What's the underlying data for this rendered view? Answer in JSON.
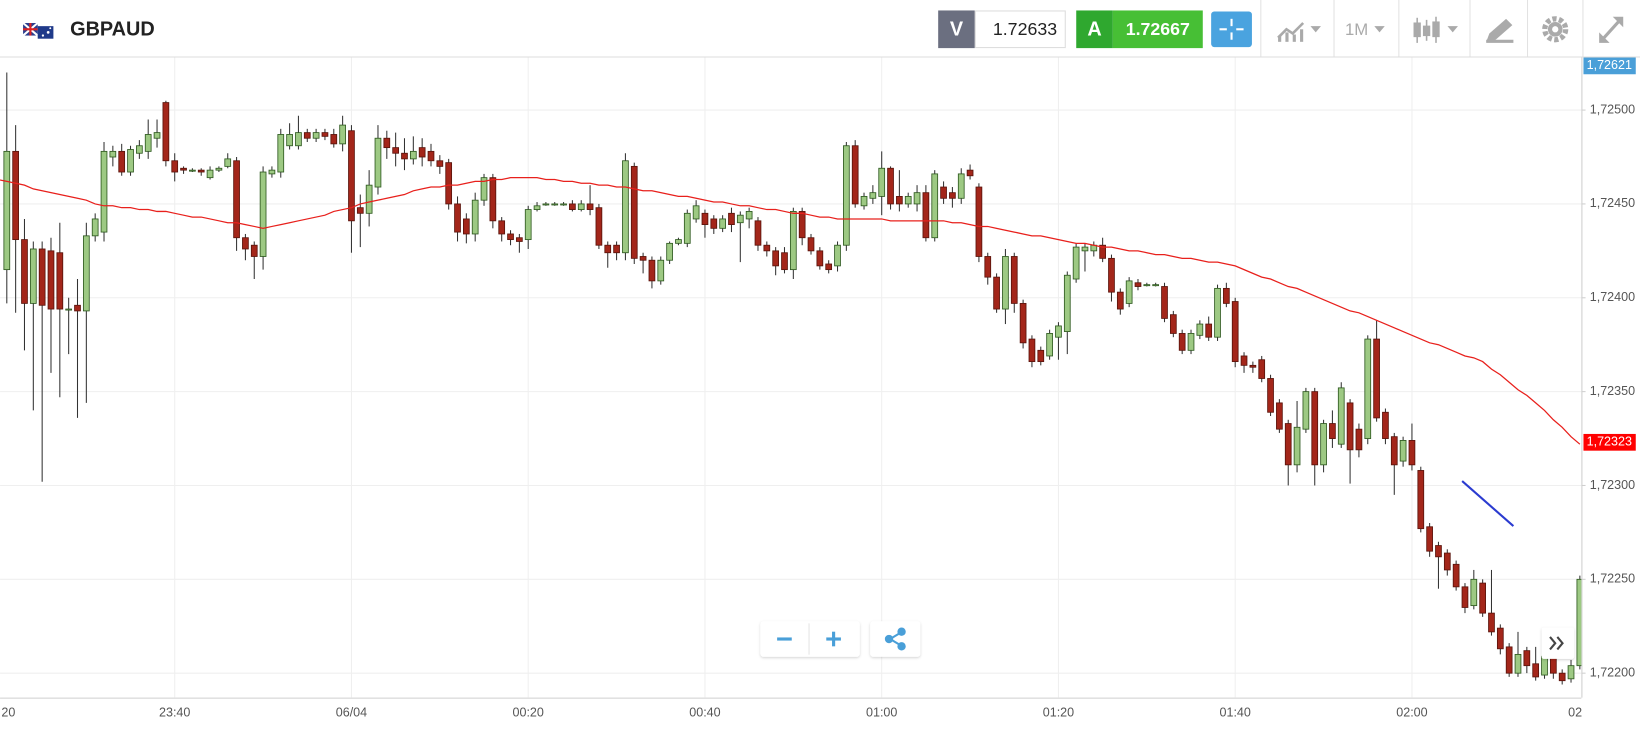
{
  "toolbar": {
    "symbol": "GBPAUD",
    "sell_label": "V",
    "sell_price": "1.72633",
    "buy_label": "A",
    "buy_price": "1.72667",
    "timeframe": "1M"
  },
  "chart_data": {
    "type": "candlestick",
    "categories": [
      "20",
      null,
      null,
      null,
      null,
      null,
      null,
      null,
      null,
      null,
      null,
      null,
      null,
      null,
      null,
      null,
      null,
      null,
      null,
      null,
      "23:40",
      null,
      null,
      null,
      null,
      null,
      null,
      null,
      null,
      null,
      null,
      null,
      null,
      null,
      null,
      null,
      null,
      null,
      null,
      null,
      "06/04",
      null,
      null,
      null,
      null,
      null,
      null,
      null,
      null,
      null,
      null,
      null,
      null,
      null,
      null,
      null,
      null,
      null,
      null,
      null,
      "00:20",
      null,
      null,
      null,
      null,
      null,
      null,
      null,
      null,
      null,
      null,
      null,
      null,
      null,
      null,
      null,
      null,
      null,
      null,
      null,
      "00:40",
      null,
      null,
      null,
      null,
      null,
      null,
      null,
      null,
      null,
      null,
      null,
      null,
      null,
      null,
      null,
      null,
      null,
      null,
      null,
      "01:00",
      null,
      null,
      null,
      null,
      null,
      null,
      null,
      null,
      null,
      null,
      null,
      null,
      null,
      null,
      null,
      null,
      null,
      null,
      null,
      "01:20",
      null,
      null,
      null,
      null,
      null,
      null,
      null,
      null,
      null,
      null,
      null,
      null,
      null,
      null,
      null,
      null,
      null,
      null,
      null,
      "01:40",
      null,
      null,
      null,
      null,
      null,
      null,
      null,
      null,
      null,
      null,
      null,
      null,
      null,
      null,
      null,
      null,
      null,
      null,
      null,
      "02:00",
      null,
      null,
      null,
      null,
      null,
      null,
      null,
      null,
      null,
      null,
      null,
      null,
      null,
      null,
      null,
      null,
      null,
      null,
      null,
      "02"
    ],
    "open": [
      null,
      1.72415,
      1.72478,
      1.72431,
      1.72397,
      1.72426,
      1.72425,
      1.72424,
      1.72394,
      1.72396,
      1.72393,
      1.72433,
      1.72435,
      1.72475,
      1.72478,
      1.72467,
      1.72477,
      1.72478,
      1.72485,
      1.72504,
      1.72473,
      1.72469,
      1.72468,
      1.72468,
      1.72464,
      1.72468,
      1.7247,
      1.72473,
      1.72432,
      1.72428,
      1.72422,
      1.72466,
      1.72467,
      1.72481,
      1.72481,
      1.72488,
      1.72485,
      1.72488,
      1.72487,
      1.72482,
      1.72489,
      1.72448,
      1.72445,
      1.72459,
      1.72485,
      1.7248,
      1.72477,
      1.72474,
      1.7248,
      1.72478,
      1.72473,
      1.72472,
      1.7245,
      1.72442,
      1.72434,
      1.72452,
      1.72464,
      1.72441,
      1.72434,
      1.72432,
      1.72431,
      1.72447,
      1.7245,
      1.7245,
      1.7245,
      1.7245,
      1.72447,
      1.7245,
      1.72448,
      1.72428,
      1.72428,
      1.72424,
      1.7247,
      1.72422,
      1.7242,
      1.72409,
      1.7242,
      1.72429,
      1.72429,
      1.72442,
      1.72445,
      1.72442,
      1.72437,
      1.72445,
      1.7244,
      1.72442,
      1.72441,
      1.72428,
      1.72425,
      1.72424,
      1.72415,
      1.72446,
      1.72432,
      1.72425,
      1.72418,
      1.72417,
      1.72428,
      1.72481,
      1.72449,
      1.72453,
      1.72454,
      1.72469,
      1.72454,
      1.7245,
      1.7245,
      1.72456,
      1.72432,
      1.72459,
      1.72456,
      1.72453,
      1.72468,
      1.72459,
      1.72422,
      1.72411,
      1.72394,
      1.72422,
      1.72397,
      1.72378,
      1.72372,
      1.72369,
      1.72379,
      1.72382,
      1.7241,
      1.72425,
      1.72425,
      1.72428,
      1.72421,
      1.72403,
      1.72397,
      1.72408,
      1.72407,
      1.72407,
      1.72406,
      1.72391,
      1.72381,
      1.72372,
      1.7238,
      1.72386,
      1.72379,
      1.72405,
      1.72398,
      1.72369,
      1.72364,
      1.72367,
      1.72357,
      1.72344,
      1.72333,
      1.72311,
      1.7233,
      1.7235,
      1.72311,
      1.72333,
      1.72322,
      1.72344,
      1.7233,
      1.72325,
      1.72378,
      1.72339,
      1.72326,
      1.72313,
      1.72324,
      1.72308,
      1.72278,
      1.72268,
      1.72264,
      1.72258,
      1.72246,
      1.72236,
      1.72248,
      1.72232,
      1.72224,
      1.72214,
      1.722,
      1.72212,
      1.72205,
      1.72199,
      1.72208,
      1.722,
      1.72197,
      1.72204,
      null
    ],
    "close": [
      null,
      1.72478,
      1.72431,
      1.72397,
      1.72426,
      1.72396,
      1.72394,
      1.72394,
      1.72394,
      1.72393,
      1.72433,
      1.72442,
      1.72478,
      1.72478,
      1.72467,
      1.72479,
      1.72481,
      1.72487,
      1.72488,
      1.72473,
      1.72467,
      1.72468,
      1.72468,
      1.72467,
      1.72468,
      1.72469,
      1.72474,
      1.72432,
      1.72426,
      1.72422,
      1.72467,
      1.72468,
      1.72487,
      1.72487,
      1.72488,
      1.72485,
      1.72488,
      1.72486,
      1.72482,
      1.72492,
      1.72441,
      1.72445,
      1.7246,
      1.72485,
      1.7248,
      1.72477,
      1.72474,
      1.72478,
      1.72475,
      1.72473,
      1.7247,
      1.7245,
      1.72435,
      1.72434,
      1.72452,
      1.72464,
      1.72441,
      1.72434,
      1.72431,
      1.7243,
      1.72447,
      1.72449,
      1.7245,
      1.7245,
      1.7245,
      1.72447,
      1.7245,
      1.72447,
      1.72428,
      1.72424,
      1.72424,
      1.72473,
      1.72421,
      1.7242,
      1.72409,
      1.7242,
      1.72429,
      1.72431,
      1.72445,
      1.72449,
      1.72439,
      1.72437,
      1.72442,
      1.72439,
      1.72444,
      1.72446,
      1.72428,
      1.72425,
      1.72417,
      1.72415,
      1.72446,
      1.72432,
      1.72425,
      1.72417,
      1.72415,
      1.72428,
      1.72481,
      1.7245,
      1.72454,
      1.72456,
      1.72469,
      1.7245,
      1.7245,
      1.72454,
      1.72456,
      1.72432,
      1.72466,
      1.72453,
      1.72453,
      1.72466,
      1.72465,
      1.72422,
      1.72411,
      1.72394,
      1.72422,
      1.72397,
      1.72376,
      1.72366,
      1.72366,
      1.72381,
      1.72385,
      1.72412,
      1.72427,
      1.72427,
      1.72428,
      1.72421,
      1.72403,
      1.72394,
      1.72409,
      1.72406,
      1.72407,
      1.72407,
      1.72389,
      1.72381,
      1.72372,
      1.72381,
      1.72386,
      1.72379,
      1.72405,
      1.72397,
      1.72366,
      1.72364,
      1.72363,
      1.72357,
      1.72339,
      1.7233,
      1.72311,
      1.72331,
      1.7235,
      1.72311,
      1.72333,
      1.72325,
      1.72352,
      1.72319,
      1.72319,
      1.72378,
      1.72336,
      1.72325,
      1.72311,
      1.72324,
      1.72311,
      1.72277,
      1.72265,
      1.72262,
      1.72255,
      1.72246,
      1.72235,
      1.7225,
      1.72232,
      1.72222,
      1.72213,
      1.722,
      1.7221,
      1.72204,
      1.72198,
      1.72209,
      1.722,
      1.72196,
      1.72204,
      1.7225,
      null
    ],
    "high": [
      null,
      1.7252,
      1.72492,
      1.72442,
      1.7243,
      1.7243,
      1.72432,
      1.7244,
      1.724,
      1.7241,
      1.7244,
      1.72445,
      1.72483,
      1.72481,
      1.72482,
      1.72481,
      1.72484,
      1.72495,
      1.72495,
      1.72505,
      1.72477,
      1.7247,
      1.72469,
      1.72469,
      1.7247,
      1.7247,
      1.72477,
      1.72475,
      1.72434,
      1.7243,
      1.7247,
      1.7247,
      1.7249,
      1.72493,
      1.72497,
      1.7249,
      1.7249,
      1.7249,
      1.7249,
      1.72497,
      1.72492,
      1.72455,
      1.72468,
      1.72492,
      1.72489,
      1.72488,
      1.72485,
      1.72486,
      1.72485,
      1.72482,
      1.72476,
      1.72474,
      1.72454,
      1.72445,
      1.72456,
      1.72466,
      1.72466,
      1.72443,
      1.72436,
      1.72434,
      1.72449,
      1.72451,
      1.72451,
      1.72451,
      1.72451,
      1.72452,
      1.72452,
      1.7246,
      1.7245,
      1.7243,
      1.7243,
      1.72477,
      1.72472,
      1.72424,
      1.72422,
      1.72422,
      1.7243,
      1.72432,
      1.72447,
      1.72452,
      1.72447,
      1.72444,
      1.72444,
      1.72448,
      1.72446,
      1.72448,
      1.72443,
      1.7243,
      1.72427,
      1.72427,
      1.72448,
      1.72448,
      1.72434,
      1.72427,
      1.7242,
      1.7243,
      1.72483,
      1.72484,
      1.72456,
      1.7246,
      1.72478,
      1.7247,
      1.72468,
      1.72456,
      1.7246,
      1.7246,
      1.72468,
      1.72462,
      1.72459,
      1.72469,
      1.72471,
      1.72461,
      1.72424,
      1.72413,
      1.72426,
      1.72424,
      1.72399,
      1.7238,
      1.72374,
      1.72383,
      1.72387,
      1.72414,
      1.72429,
      1.72429,
      1.7243,
      1.72432,
      1.72423,
      1.72405,
      1.72411,
      1.7241,
      1.72408,
      1.72408,
      1.72408,
      1.72393,
      1.72383,
      1.72383,
      1.72388,
      1.7239,
      1.72407,
      1.72408,
      1.724,
      1.72371,
      1.72366,
      1.72369,
      1.72359,
      1.72346,
      1.72335,
      1.72345,
      1.72352,
      1.72352,
      1.72335,
      1.7234,
      1.72355,
      1.72346,
      1.72333,
      1.7238,
      1.72388,
      1.72341,
      1.72328,
      1.72326,
      1.72333,
      1.7231,
      1.7228,
      1.7227,
      1.72266,
      1.7226,
      1.72248,
      1.72255,
      1.7225,
      1.72255,
      1.72226,
      1.72216,
      1.72222,
      1.72214,
      1.72214,
      1.72211,
      1.7221,
      1.72202,
      1.72207,
      1.72252,
      null
    ],
    "low": [
      null,
      1.72397,
      1.72392,
      1.72372,
      1.7234,
      1.72302,
      1.7236,
      1.72347,
      1.7237,
      1.72336,
      1.72344,
      1.7243,
      1.7243,
      1.7247,
      1.72465,
      1.72465,
      1.72474,
      1.72474,
      1.7248,
      1.7247,
      1.72462,
      1.72466,
      1.72467,
      1.72465,
      1.72463,
      1.72467,
      1.72469,
      1.72425,
      1.7242,
      1.7241,
      1.72415,
      1.72464,
      1.72464,
      1.72479,
      1.72479,
      1.72483,
      1.72483,
      1.72484,
      1.7248,
      1.72478,
      1.72424,
      1.72427,
      1.72438,
      1.72455,
      1.72474,
      1.7247,
      1.72468,
      1.72471,
      1.7247,
      1.7247,
      1.72466,
      1.72447,
      1.7243,
      1.72429,
      1.7243,
      1.72449,
      1.72437,
      1.7243,
      1.72428,
      1.72424,
      1.72426,
      1.72446,
      1.72449,
      1.72449,
      1.72449,
      1.72446,
      1.72446,
      1.72444,
      1.72426,
      1.72416,
      1.7242,
      1.7242,
      1.72418,
      1.72413,
      1.72405,
      1.72407,
      1.72418,
      1.72428,
      1.72427,
      1.7244,
      1.72432,
      1.72434,
      1.72435,
      1.72435,
      1.72419,
      1.72437,
      1.72425,
      1.72422,
      1.72412,
      1.72413,
      1.7241,
      1.72428,
      1.72423,
      1.72415,
      1.72413,
      1.72414,
      1.72425,
      1.72448,
      1.72447,
      1.7245,
      1.72444,
      1.72447,
      1.72446,
      1.72448,
      1.72446,
      1.7243,
      1.7243,
      1.7245,
      1.72448,
      1.7245,
      1.72463,
      1.72419,
      1.72407,
      1.72392,
      1.72386,
      1.72392,
      1.72373,
      1.72363,
      1.72364,
      1.72367,
      1.72367,
      1.7237,
      1.72408,
      1.72414,
      1.72422,
      1.72419,
      1.72398,
      1.72391,
      1.72395,
      1.72404,
      1.72406,
      1.72406,
      1.72387,
      1.72379,
      1.7237,
      1.7237,
      1.72378,
      1.72377,
      1.72377,
      1.72395,
      1.72363,
      1.7236,
      1.7236,
      1.72355,
      1.72337,
      1.72328,
      1.723,
      1.72307,
      1.72328,
      1.723,
      1.72307,
      1.7232,
      1.7232,
      1.72301,
      1.72315,
      1.72322,
      1.72334,
      1.72322,
      1.72295,
      1.7231,
      1.72308,
      1.72275,
      1.72262,
      1.72245,
      1.72252,
      1.72244,
      1.72232,
      1.72234,
      1.7223,
      1.7222,
      1.7221,
      1.72198,
      1.72198,
      1.722,
      1.72196,
      1.72197,
      1.72197,
      1.72194,
      1.72195,
      1.72202,
      null
    ],
    "ma_values": [
      1.72463,
      1.72462,
      1.72461,
      1.7246,
      1.72458,
      1.72457,
      1.72456,
      1.72455,
      1.72454,
      1.72453,
      1.72452,
      1.7245,
      1.72449,
      1.72449,
      1.72448,
      1.72448,
      1.72447,
      1.72447,
      1.72446,
      1.72446,
      1.72445,
      1.72444,
      1.72443,
      1.72443,
      1.72442,
      1.72441,
      1.7244,
      1.7244,
      1.72439,
      1.72438,
      1.72437,
      1.72438,
      1.72439,
      1.7244,
      1.72441,
      1.72442,
      1.72443,
      1.72444,
      1.72446,
      1.72447,
      1.72448,
      1.7245,
      1.72451,
      1.72452,
      1.72453,
      1.72454,
      1.72455,
      1.72457,
      1.72458,
      1.72459,
      1.72459,
      1.7246,
      1.7246,
      1.72461,
      1.72462,
      1.72462,
      1.72463,
      1.72463,
      1.72464,
      1.72464,
      1.72464,
      1.72464,
      1.72463,
      1.72463,
      1.72462,
      1.72462,
      1.72461,
      1.72461,
      1.7246,
      1.7246,
      1.72459,
      1.72459,
      1.72458,
      1.72457,
      1.72457,
      1.72456,
      1.72455,
      1.72454,
      1.72454,
      1.72453,
      1.72452,
      1.72451,
      1.72451,
      1.7245,
      1.72449,
      1.72449,
      1.72448,
      1.72447,
      1.72447,
      1.72446,
      1.72445,
      1.72445,
      1.72444,
      1.72443,
      1.72443,
      1.72442,
      1.72442,
      1.72442,
      1.72442,
      1.72442,
      1.72442,
      1.72441,
      1.72441,
      1.72441,
      1.72441,
      1.72441,
      1.72441,
      1.72441,
      1.7244,
      1.7244,
      1.72439,
      1.72438,
      1.72438,
      1.72437,
      1.72436,
      1.72435,
      1.72434,
      1.72433,
      1.72433,
      1.72432,
      1.72431,
      1.7243,
      1.72429,
      1.72429,
      1.72428,
      1.72427,
      1.72427,
      1.72426,
      1.72425,
      1.72425,
      1.72424,
      1.72423,
      1.72423,
      1.72422,
      1.72421,
      1.72421,
      1.7242,
      1.72419,
      1.72419,
      1.72418,
      1.72417,
      1.72415,
      1.72413,
      1.72411,
      1.7241,
      1.72408,
      1.72406,
      1.72405,
      1.72403,
      1.72401,
      1.72399,
      1.72397,
      1.72395,
      1.72393,
      1.72392,
      1.7239,
      1.72388,
      1.72386,
      1.72384,
      1.72382,
      1.7238,
      1.72378,
      1.72376,
      1.72375,
      1.72373,
      1.72371,
      1.72369,
      1.72368,
      1.72366,
      1.72362,
      1.72359,
      1.72355,
      1.72351,
      1.72348,
      1.72344,
      1.7234,
      1.72335,
      1.72331,
      1.72326,
      1.72322,
      null
    ],
    "up_color": "#9dc983",
    "down_color": "#a3261a",
    "ma_color": "#e8201c",
    "ylim": [
      1.72187,
      1.72528
    ],
    "yticks": [
      {
        "value": 1.722,
        "label": "1,72200"
      },
      {
        "value": 1.7225,
        "label": "1,72250"
      },
      {
        "value": 1.723,
        "label": "1,72300"
      },
      {
        "value": 1.7235,
        "label": "1,72350"
      },
      {
        "value": 1.724,
        "label": "1,72400"
      },
      {
        "value": 1.7245,
        "label": "1,72450"
      },
      {
        "value": 1.725,
        "label": "1,72500"
      }
    ],
    "grid": true,
    "price_markers": [
      {
        "value": 1.72621,
        "label": "1,72621",
        "color": "#4a9fd8"
      },
      {
        "value": 1.72323,
        "label": "1,72323",
        "color": "#ff0000"
      }
    ]
  }
}
